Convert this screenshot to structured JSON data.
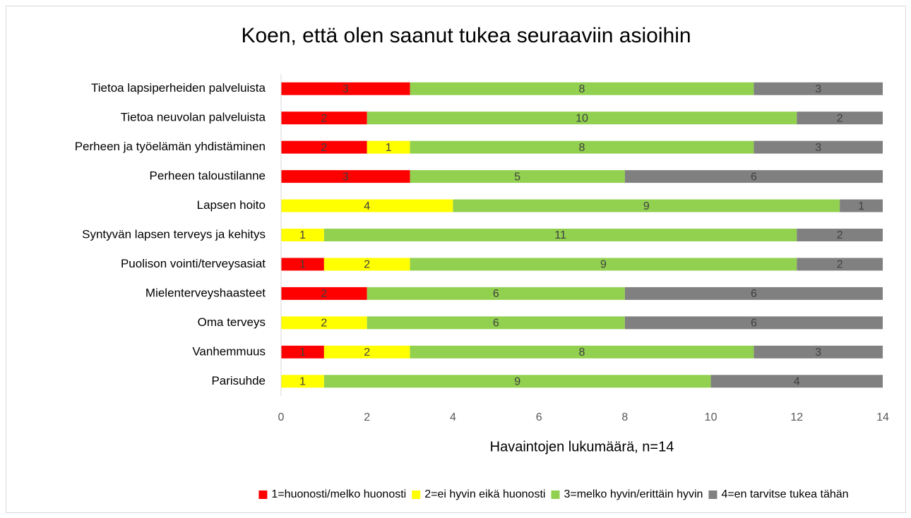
{
  "chart_data": {
    "type": "stacked_bar_horizontal",
    "title": "Koen, että olen saanut tukea seuraaviin asioihin",
    "x_label": "Havaintojen lukumäärä, n=14",
    "categories": [
      "Tietoa lapsiperheiden palveluista",
      "Tietoa neuvolan palveluista",
      "Perheen ja työelämän yhdistäminen",
      "Perheen taloustilanne",
      "Lapsen hoito",
      "Syntyvän lapsen terveys ja kehitys",
      "Puolison vointi/terveysasiat",
      "Mielenterveyshaasteet",
      "Oma terveys",
      "Vanhemmuus",
      "Parisuhde"
    ],
    "series": [
      {
        "name": "1=huonosti/melko huonosti",
        "color": "#ff0000",
        "values": [
          3,
          2,
          2,
          3,
          null,
          null,
          1,
          2,
          null,
          1,
          null
        ]
      },
      {
        "name": "2=ei hyvin eikä huonosti",
        "color": "#ffff00",
        "values": [
          null,
          null,
          1,
          null,
          4,
          1,
          2,
          null,
          2,
          2,
          1
        ]
      },
      {
        "name": "3=melko hyvin/erittäin hyvin",
        "color": "#92d050",
        "values": [
          8,
          10,
          8,
          5,
          9,
          11,
          9,
          6,
          6,
          8,
          9
        ]
      },
      {
        "name": "4=en tarvitse tukea tähän",
        "color": "#808080",
        "values": [
          3,
          2,
          3,
          6,
          1,
          2,
          2,
          6,
          6,
          3,
          4
        ]
      }
    ],
    "xlim": [
      0,
      14
    ],
    "xticks": [
      0,
      2,
      4,
      6,
      8,
      10,
      12,
      14
    ],
    "legend": "bottom",
    "grid": false
  }
}
